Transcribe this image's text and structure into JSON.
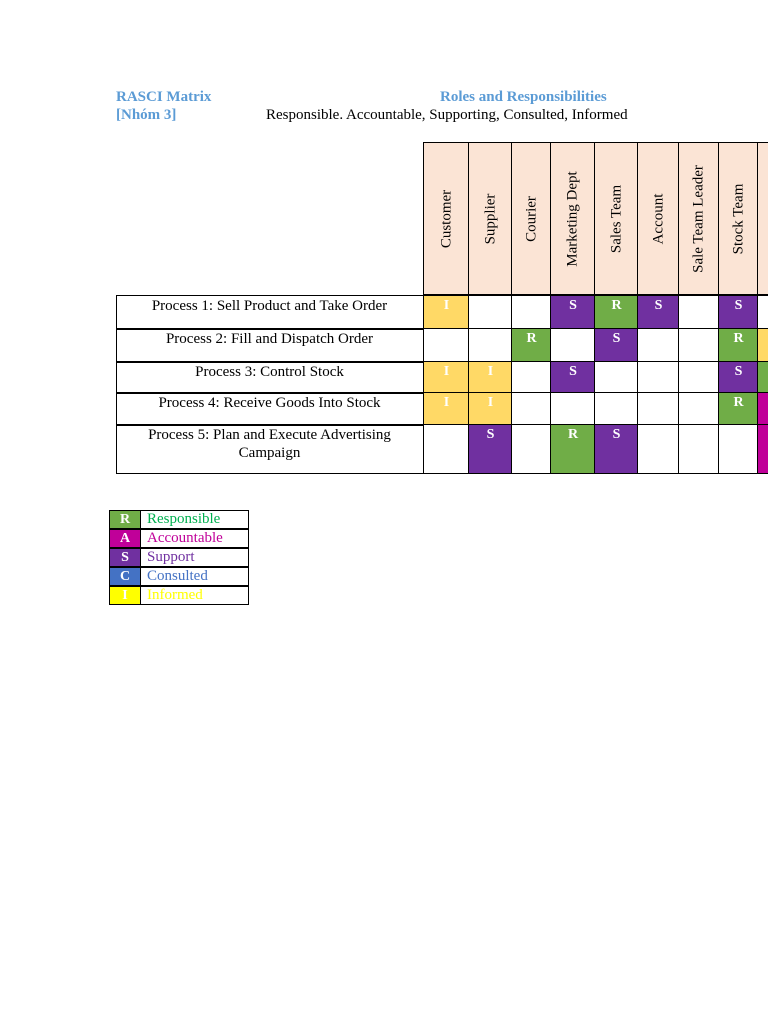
{
  "header": {
    "title": "RASCI Matrix",
    "group": "[Nhóm 3]",
    "center_title": "Roles and Responsibilities",
    "subtitle": "Responsible. Accountable, Supporting, Consulted, Informed"
  },
  "roles": [
    "Customer",
    "Supplier",
    "Courier",
    "Marketing Dept",
    "Sales Team",
    "Account",
    "Sale Team Leader",
    "Stock Team",
    ""
  ],
  "processes": [
    {
      "label": "Process 1: Sell Product and Take Order",
      "cells": [
        "I",
        "",
        "",
        "S",
        "R",
        "S",
        "",
        "S",
        ""
      ]
    },
    {
      "label": "Process 2: Fill and Dispatch Order",
      "cells": [
        "",
        "",
        "R",
        "",
        "S",
        "",
        "",
        "R",
        "I"
      ]
    },
    {
      "label": "Process 3: Control Stock",
      "cells": [
        "I",
        "I",
        "",
        "S",
        "",
        "",
        "",
        "S",
        "R"
      ]
    },
    {
      "label": "Process 4: Receive Goods Into Stock",
      "cells": [
        "I",
        "I",
        "",
        "",
        "",
        "",
        "",
        "R",
        "A"
      ]
    },
    {
      "label": "Process 5: Plan and Execute Advertising Campaign",
      "cells": [
        "",
        "S",
        "",
        "R",
        "S",
        "",
        "",
        "",
        "A"
      ]
    }
  ],
  "legend": [
    {
      "key": "R",
      "label": "Responsible",
      "color": "#70ad47",
      "text_color": "#00b050"
    },
    {
      "key": "A",
      "label": "Accountable",
      "color": "#c00099",
      "text_color": "#c00099"
    },
    {
      "key": "S",
      "label": "Support",
      "color": "#7030a0",
      "text_color": "#7030a0"
    },
    {
      "key": "C",
      "label": "Consulted",
      "color": "#4472c4",
      "text_color": "#4472c4"
    },
    {
      "key": "I",
      "label": "Informed",
      "color": "#ffff00",
      "text_color": "#ffff00"
    }
  ]
}
